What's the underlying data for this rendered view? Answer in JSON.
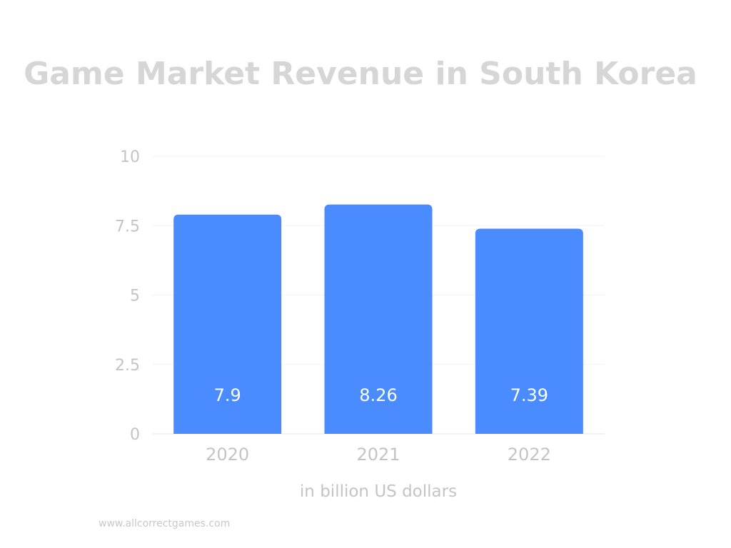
{
  "chart_data": {
    "type": "bar",
    "title": "Game Market Revenue in South Korea",
    "xlabel": "in billion US dollars",
    "ylabel": "",
    "categories": [
      "2020",
      "2021",
      "2022"
    ],
    "values": [
      7.9,
      8.26,
      7.39
    ],
    "data_labels": [
      "7.9",
      "8.26",
      "7.39"
    ],
    "yticks": [
      0,
      2.5,
      5,
      7.5,
      10
    ],
    "ytick_labels": [
      "0",
      "2.5",
      "5",
      "7.5",
      "10"
    ],
    "ylim": [
      0,
      10
    ],
    "grid": true,
    "legend": "none",
    "bar_color": "#4a8cff"
  },
  "footer": {
    "source": "www.allcorrectgames.com"
  }
}
